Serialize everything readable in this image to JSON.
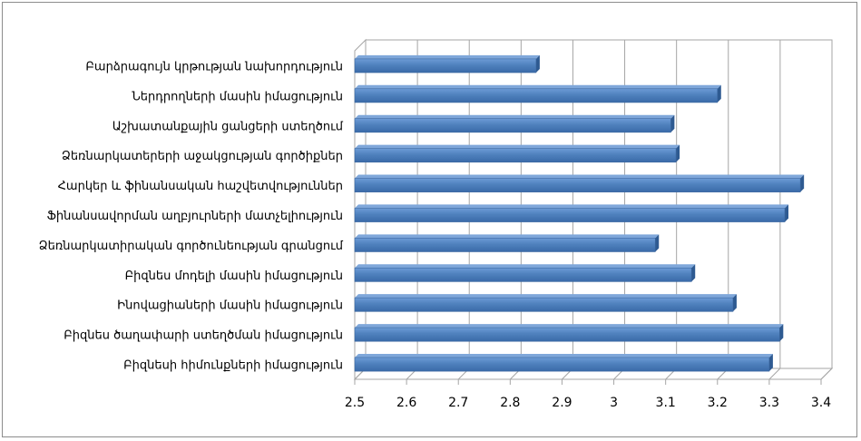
{
  "chart_data": {
    "type": "bar",
    "orientation": "horizontal",
    "title": "",
    "xlabel": "",
    "ylabel": "",
    "xlim": [
      2.5,
      3.4
    ],
    "grid": true,
    "legend": "none",
    "bar_color": "#4F81BD",
    "ticks": [
      "2.5",
      "2.6",
      "2.7",
      "2.8",
      "2.9",
      "3",
      "3.1",
      "3.2",
      "3.3",
      "3.4"
    ],
    "tick_values": [
      2.5,
      2.6,
      2.7,
      2.8,
      2.9,
      3.0,
      3.1,
      3.2,
      3.3,
      3.4
    ],
    "categories": [
      "Բարձրագույն կրթության նախորդություն",
      "Ներդրողների մասին իմացություն",
      "Աշխատանքային ցանցերի ստեղծում",
      "Ձեռնարկատերերի աջակցության գործիքներ",
      "Հարկեր և ֆինանսական հաշվետվություններ",
      "Ֆինանսավորման աղբյուրների մատչելիություն",
      "Ձեռնարկատիրական գործունեության գրանցում",
      "Բիզնես մոդելի մասին իմացություն",
      "Ինովացիաների մասին իմացություն",
      "Բիզնես ծաղափարի ստեղծման իմացություն",
      "Բիզնեսի հիմունքների իմացություն"
    ],
    "values": [
      2.85,
      3.2,
      3.11,
      3.12,
      3.36,
      3.33,
      3.08,
      3.15,
      3.23,
      3.32,
      3.3
    ]
  }
}
